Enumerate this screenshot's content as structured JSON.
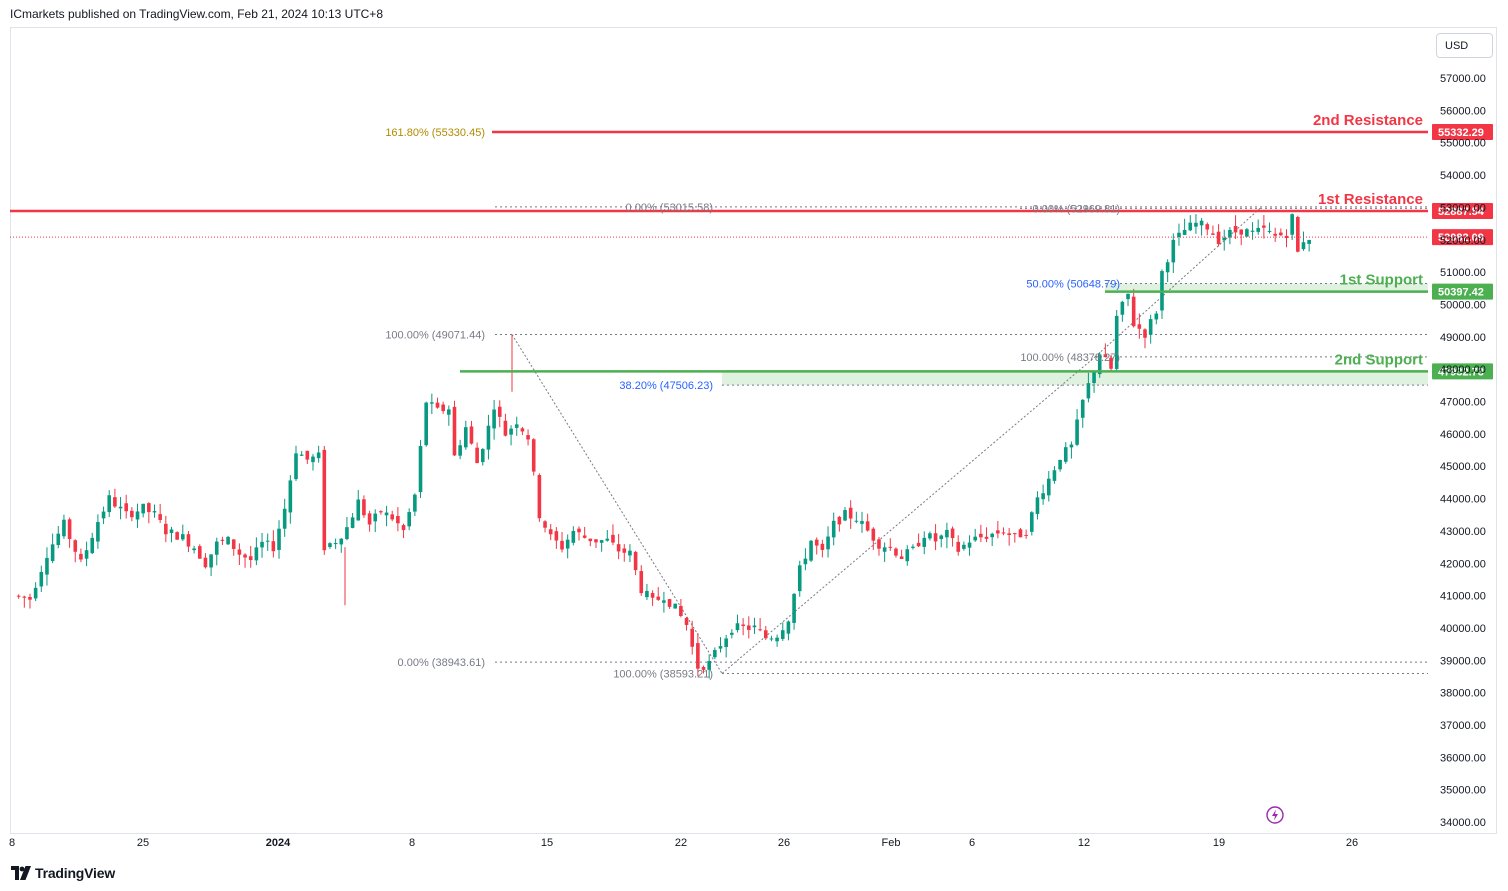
{
  "header": {
    "publisher_text": "ICmarkets published on TradingView.com, Feb 21, 2024 10:13 UTC+8"
  },
  "currency_button": {
    "label": "USD"
  },
  "footer": {
    "brand": "TradingView"
  },
  "colors": {
    "up": "#089981",
    "down": "#f23645",
    "resistance": "#f23645",
    "support": "#4caf50",
    "fib_gold": "#b28b00",
    "fib_grey": "#787b86",
    "fib_blue": "#2962ff",
    "purple": "#9c27b0"
  },
  "chart_data": {
    "type": "candlestick",
    "symbol_currency": "USD",
    "ylim": [
      34000,
      57800
    ],
    "y_ticks": [
      "57000.00",
      "56000.00",
      "55000.00",
      "54000.00",
      "53000.00",
      "52000.00",
      "51000.00",
      "50000.00",
      "49000.00",
      "48000.00",
      "47000.00",
      "46000.00",
      "45000.00",
      "44000.00",
      "43000.00",
      "42000.00",
      "41000.00",
      "40000.00",
      "39000.00",
      "38000.00",
      "37000.00",
      "36000.00",
      "35000.00",
      "34000.00"
    ],
    "x_ticks": [
      "8",
      "25",
      "2024",
      "8",
      "15",
      "22",
      "26",
      "Feb",
      "6",
      "12",
      "19",
      "26"
    ],
    "levels": [
      {
        "label": "2nd Resistance",
        "price": 55332.29,
        "price_label": "55332.29",
        "kind": "resistance"
      },
      {
        "label": "1st Resistance",
        "price": 52887.54,
        "price_label": "52887.54",
        "kind": "resistance"
      },
      {
        "label": "1st Support",
        "price": 50397.42,
        "price_label": "50397.42",
        "kind": "support"
      },
      {
        "label": "2nd Support",
        "price": 47932.73,
        "price_label": "47932.73",
        "kind": "support"
      }
    ],
    "current_price": {
      "price": 52082.09,
      "label": "52082.09"
    },
    "fib_labels": [
      {
        "text": "161.80% (55330.45)",
        "price": 55330.45,
        "color": "gold"
      },
      {
        "text": "0.00% (53015.58)",
        "price": 53015.58,
        "color": "grey"
      },
      {
        "text": "0.00% (52969.81)",
        "price": 52969.81,
        "color": "grey"
      },
      {
        "text": "50.00% (50648.79)",
        "price": 50648.79,
        "color": "blue"
      },
      {
        "text": "100.00% (49071.44)",
        "price": 49071.44,
        "color": "grey"
      },
      {
        "text": "100.00% (48378.27)",
        "price": 48378.27,
        "color": "grey"
      },
      {
        "text": "38.20% (47506.23)",
        "price": 47506.23,
        "color": "blue"
      },
      {
        "text": "0.00% (38943.61)",
        "price": 38943.61,
        "color": "grey"
      },
      {
        "text": "100.00% (38593.21)",
        "price": 38593.21,
        "color": "grey"
      }
    ],
    "close_path": [
      [
        0,
        41000
      ],
      [
        3,
        40900
      ],
      [
        6,
        42300
      ],
      [
        9,
        43200
      ],
      [
        12,
        42000
      ],
      [
        15,
        43300
      ],
      [
        17,
        44000
      ],
      [
        20,
        43500
      ],
      [
        23,
        43700
      ],
      [
        25,
        43500
      ],
      [
        27,
        43000
      ],
      [
        30,
        42800
      ],
      [
        32,
        42500
      ],
      [
        34,
        42000
      ],
      [
        36,
        42600
      ],
      [
        38,
        42700
      ],
      [
        40,
        42300
      ],
      [
        42,
        42100
      ],
      [
        44,
        42600
      ],
      [
        46,
        42500
      ],
      [
        48,
        43700
      ],
      [
        50,
        45500
      ],
      [
        52,
        45200
      ],
      [
        54,
        45300
      ],
      [
        55,
        42500
      ],
      [
        57,
        42700
      ],
      [
        59,
        43100
      ],
      [
        61,
        43900
      ],
      [
        63,
        43200
      ],
      [
        65,
        43600
      ],
      [
        67,
        43400
      ],
      [
        69,
        43000
      ],
      [
        71,
        44100
      ],
      [
        73,
        47000
      ],
      [
        75,
        46700
      ],
      [
        77,
        46800
      ],
      [
        78,
        45300
      ],
      [
        80,
        46200
      ],
      [
        82,
        45100
      ],
      [
        84,
        46200
      ],
      [
        85,
        46900
      ],
      [
        87,
        46000
      ],
      [
        89,
        46400
      ],
      [
        91,
        45900
      ],
      [
        93,
        43500
      ],
      [
        95,
        42800
      ],
      [
        97,
        42500
      ],
      [
        99,
        43000
      ],
      [
        101,
        42800
      ],
      [
        103,
        42700
      ],
      [
        105,
        42700
      ],
      [
        107,
        42400
      ],
      [
        109,
        42300
      ],
      [
        111,
        41200
      ],
      [
        113,
        40800
      ],
      [
        115,
        41000
      ],
      [
        117,
        40600
      ],
      [
        119,
        40100
      ],
      [
        120,
        39400
      ],
      [
        121,
        38800
      ],
      [
        123,
        38900
      ],
      [
        125,
        39500
      ],
      [
        127,
        40000
      ],
      [
        129,
        40000
      ],
      [
        131,
        40000
      ],
      [
        133,
        39700
      ],
      [
        135,
        39800
      ],
      [
        137,
        40300
      ],
      [
        139,
        41800
      ],
      [
        141,
        42700
      ],
      [
        143,
        42300
      ],
      [
        145,
        43200
      ],
      [
        147,
        43500
      ],
      [
        149,
        43400
      ],
      [
        151,
        43000
      ],
      [
        153,
        42600
      ],
      [
        155,
        42500
      ],
      [
        157,
        42200
      ],
      [
        159,
        42400
      ],
      [
        161,
        42900
      ],
      [
        163,
        42700
      ],
      [
        165,
        42900
      ],
      [
        167,
        42400
      ],
      [
        169,
        42700
      ],
      [
        171,
        42800
      ],
      [
        173,
        42900
      ],
      [
        175,
        43000
      ],
      [
        177,
        42800
      ],
      [
        179,
        43000
      ],
      [
        181,
        44000
      ],
      [
        183,
        44600
      ],
      [
        185,
        45300
      ],
      [
        187,
        45600
      ],
      [
        189,
        47000
      ],
      [
        191,
        48000
      ],
      [
        192,
        48500
      ],
      [
        194,
        48000
      ],
      [
        195,
        49600
      ],
      [
        197,
        50300
      ],
      [
        198,
        49400
      ],
      [
        200,
        49100
      ],
      [
        202,
        49800
      ],
      [
        203,
        51000
      ],
      [
        205,
        51900
      ],
      [
        207,
        52300
      ],
      [
        209,
        52500
      ],
      [
        211,
        52400
      ],
      [
        213,
        52000
      ],
      [
        215,
        52200
      ],
      [
        217,
        52300
      ],
      [
        219,
        52200
      ],
      [
        221,
        52300
      ],
      [
        223,
        52100
      ],
      [
        225,
        52200
      ],
      [
        226,
        52700
      ],
      [
        227,
        51600
      ],
      [
        228,
        52000
      ],
      [
        229,
        52082
      ]
    ]
  }
}
